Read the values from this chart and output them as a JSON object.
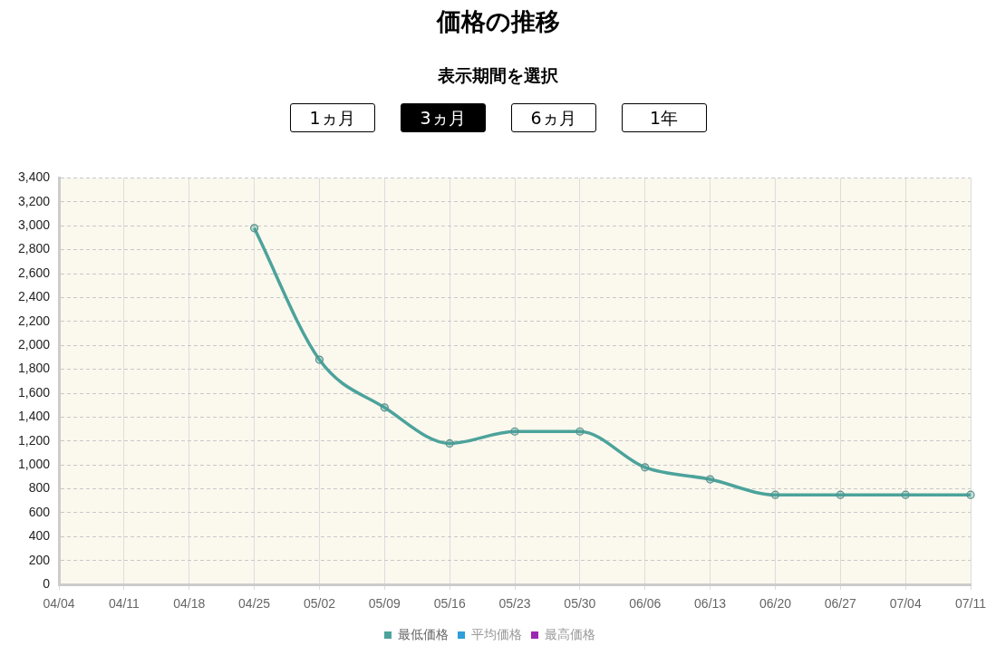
{
  "chart_data": {
    "type": "line",
    "title": "価格の推移",
    "subtitle": "表示期間を選択",
    "annotations": [
      "1ヵ月",
      "3ヵ月",
      "6ヵ月",
      "1年"
    ],
    "categories": [
      "04/04",
      "04/11",
      "04/18",
      "04/25",
      "05/02",
      "05/09",
      "05/16",
      "05/23",
      "05/30",
      "06/06",
      "06/13",
      "06/20",
      "06/27",
      "07/04",
      "07/11"
    ],
    "series": [
      {
        "name": "最低価格",
        "color": "#4ca39b",
        "values": [
          null,
          null,
          null,
          2980,
          1880,
          1480,
          1180,
          1280,
          1280,
          980,
          880,
          750,
          750,
          750,
          750
        ]
      },
      {
        "name": "平均価格",
        "color": "#2e9fd9",
        "values": [
          null,
          null,
          null,
          null,
          null,
          null,
          null,
          null,
          null,
          null,
          null,
          null,
          null,
          null,
          null
        ]
      },
      {
        "name": "最高価格",
        "color": "#9c27b0",
        "values": [
          null,
          null,
          null,
          null,
          null,
          null,
          null,
          null,
          null,
          null,
          null,
          null,
          null,
          null,
          null
        ]
      }
    ],
    "ylim": [
      0,
      3400
    ],
    "yticks": [
      0,
      200,
      400,
      600,
      800,
      {
        "value": 1000,
        "label": "1,000"
      },
      {
        "value": 1200,
        "label": "1,200"
      },
      {
        "value": 1400,
        "label": "1,400"
      },
      {
        "value": 1600,
        "label": "1,600"
      },
      {
        "value": 1800,
        "label": "1,800"
      },
      {
        "value": 2000,
        "label": "2,000"
      },
      {
        "value": 2200,
        "label": "2,200"
      },
      {
        "value": 2400,
        "label": "2,400"
      },
      {
        "value": 2600,
        "label": "2,600"
      },
      {
        "value": 2800,
        "label": "2,800"
      },
      {
        "value": 3000,
        "label": "3,000"
      },
      {
        "value": 3200,
        "label": "3,200"
      },
      {
        "value": 3400,
        "label": "3,400"
      }
    ],
    "grid": true,
    "legend": "bottom",
    "marker": "circle",
    "line_style": "solid"
  }
}
